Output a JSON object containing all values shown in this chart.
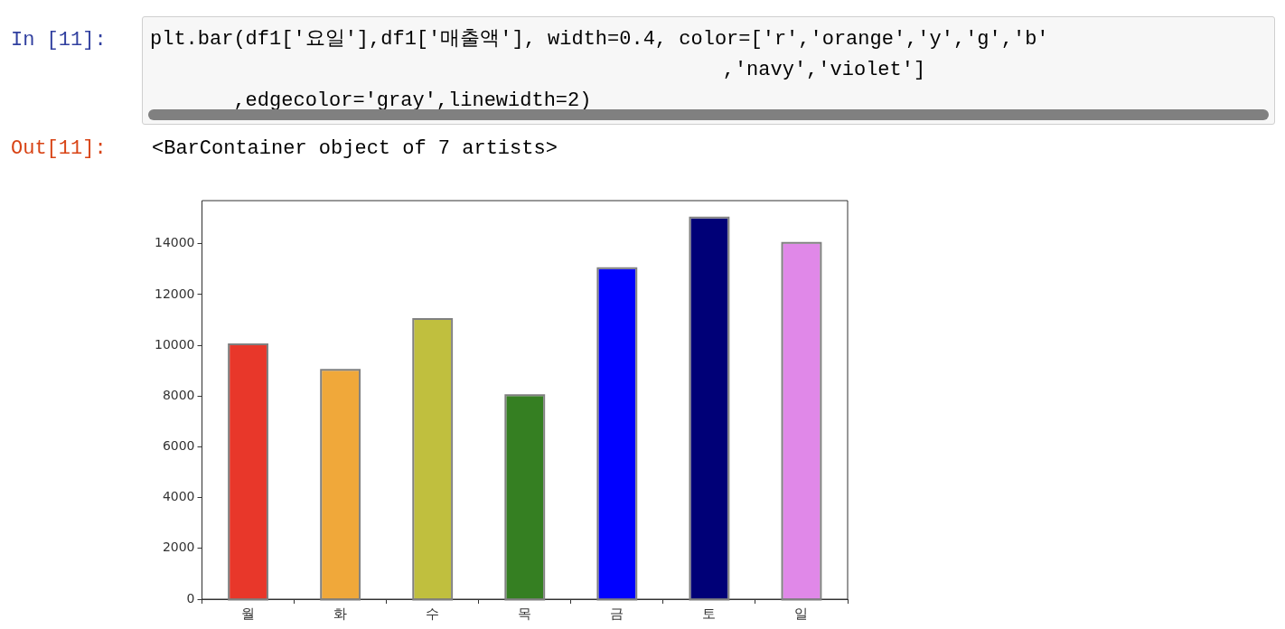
{
  "chart_data": {
    "type": "bar",
    "categories": [
      "월",
      "화",
      "수",
      "목",
      "금",
      "토",
      "일"
    ],
    "values": [
      10000,
      9000,
      11000,
      8000,
      13000,
      15000,
      14000
    ],
    "colors": [
      "#e8372a",
      "#f0a83a",
      "#c0bf3e",
      "#357f22",
      "#0000ff",
      "#000077",
      "#e088e8"
    ],
    "ylim": [
      0,
      15700
    ],
    "yticks": [
      0,
      2000,
      4000,
      6000,
      8000,
      10000,
      12000,
      14000
    ],
    "annotations": [
      "In [11]:",
      "plt.bar(df1['요일'],df1['매출액'], width=0.4, color=['r','orange','y','g','b'\n                                                ,'navy','violet']\n       ,edgecolor='gray',linewidth=2)",
      "Out[11]:",
      "<BarContainer object of 7 artists>"
    ]
  }
}
